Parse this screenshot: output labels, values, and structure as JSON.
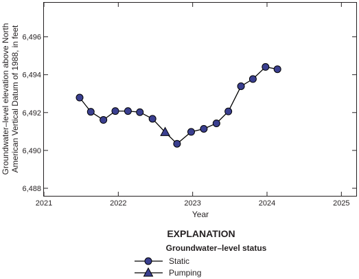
{
  "chart_data": {
    "type": "scatter",
    "title": "",
    "xlabel": "Year",
    "ylabel_line1": "Groundwater–level elevation above North",
    "ylabel_line2": "American Vertical Datum of 1988, in feet",
    "xlim": [
      2021.0,
      2025.2
    ],
    "ylim": [
      6487.6,
      6497.8
    ],
    "x_ticks": [
      {
        "value": 2021,
        "label": "2021"
      },
      {
        "value": 2022,
        "label": "2022"
      },
      {
        "value": 2023,
        "label": "2023"
      },
      {
        "value": 2024,
        "label": "2024"
      },
      {
        "value": 2025,
        "label": "2025"
      }
    ],
    "y_ticks": [
      {
        "value": 6488,
        "label": "6,488"
      },
      {
        "value": 6490,
        "label": "6,490"
      },
      {
        "value": 6492,
        "label": "6,492"
      },
      {
        "value": 6494,
        "label": "6,494"
      },
      {
        "value": 6496,
        "label": "6,496"
      }
    ],
    "grid": false,
    "line_color": "#000000",
    "marker_fill": "#3a3f8f",
    "points": [
      {
        "x": 2021.48,
        "y": 6492.79,
        "status": "static"
      },
      {
        "x": 2021.63,
        "y": 6492.04,
        "status": "static"
      },
      {
        "x": 2021.8,
        "y": 6491.61,
        "status": "static"
      },
      {
        "x": 2021.96,
        "y": 6492.08,
        "status": "static"
      },
      {
        "x": 2022.13,
        "y": 6492.08,
        "status": "static"
      },
      {
        "x": 2022.29,
        "y": 6492.02,
        "status": "static"
      },
      {
        "x": 2022.46,
        "y": 6491.67,
        "status": "static"
      },
      {
        "x": 2022.63,
        "y": 6490.96,
        "status": "pumping"
      },
      {
        "x": 2022.79,
        "y": 6490.35,
        "status": "static"
      },
      {
        "x": 2022.98,
        "y": 6490.98,
        "status": "static"
      },
      {
        "x": 2023.15,
        "y": 6491.14,
        "status": "static"
      },
      {
        "x": 2023.32,
        "y": 6491.43,
        "status": "static"
      },
      {
        "x": 2023.48,
        "y": 6492.06,
        "status": "static"
      },
      {
        "x": 2023.65,
        "y": 6493.39,
        "status": "static"
      },
      {
        "x": 2023.81,
        "y": 6493.77,
        "status": "static"
      },
      {
        "x": 2023.98,
        "y": 6494.41,
        "status": "static"
      },
      {
        "x": 2024.14,
        "y": 6494.29,
        "status": "static"
      }
    ],
    "legend": {
      "heading": "EXPLANATION",
      "subheading": "Groundwater–level status",
      "entries": [
        {
          "label": "Static",
          "marker": "circle"
        },
        {
          "label": "Pumping",
          "marker": "triangle"
        }
      ]
    }
  }
}
